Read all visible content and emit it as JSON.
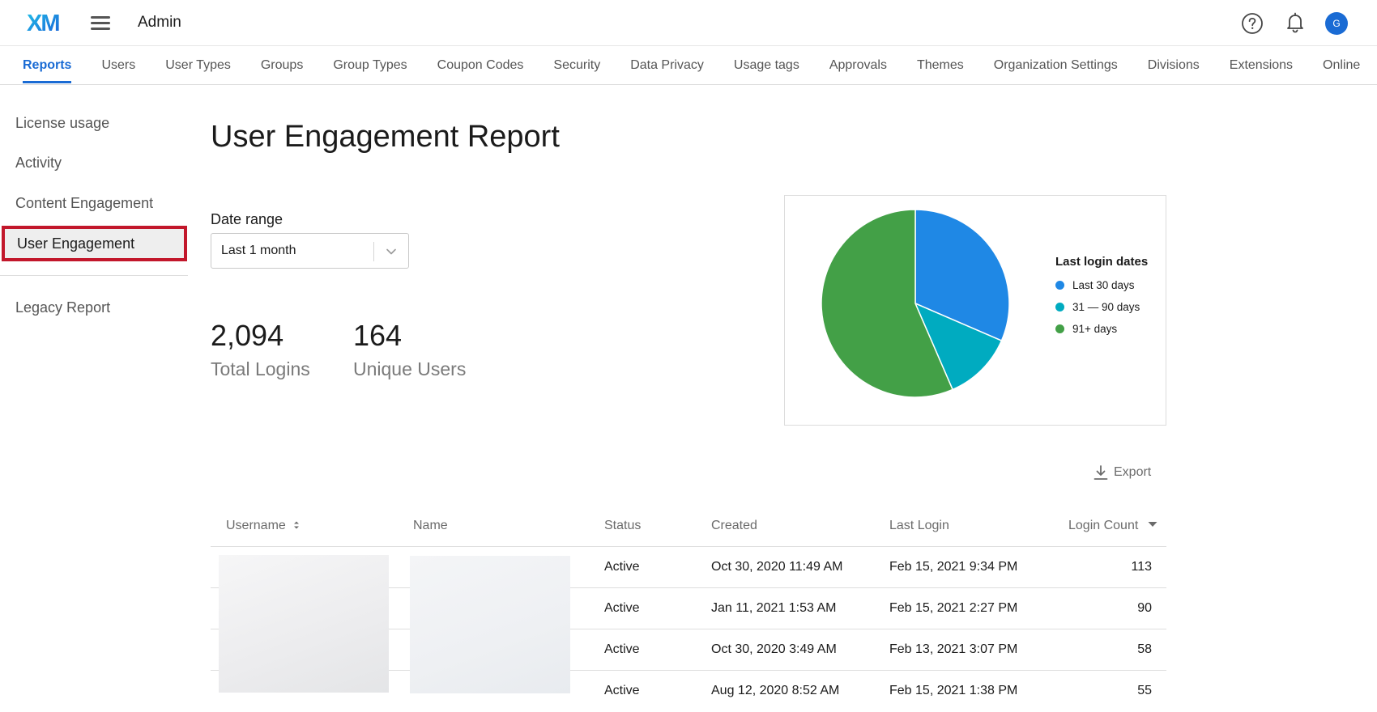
{
  "app": {
    "logo_text": "XM",
    "title": "Admin",
    "avatar_initial": "G"
  },
  "tabs": [
    {
      "label": "Reports",
      "active": true
    },
    {
      "label": "Users"
    },
    {
      "label": "User Types"
    },
    {
      "label": "Groups"
    },
    {
      "label": "Group Types"
    },
    {
      "label": "Coupon Codes"
    },
    {
      "label": "Security"
    },
    {
      "label": "Data Privacy"
    },
    {
      "label": "Usage tags"
    },
    {
      "label": "Approvals"
    },
    {
      "label": "Themes"
    },
    {
      "label": "Organization Settings"
    },
    {
      "label": "Divisions"
    },
    {
      "label": "Extensions"
    },
    {
      "label": "Online"
    }
  ],
  "sidebar": {
    "items": [
      {
        "label": "License usage"
      },
      {
        "label": "Activity"
      },
      {
        "label": "Content Engagement"
      },
      {
        "label": "User Engagement",
        "selected": true
      },
      {
        "label": "Legacy Report"
      }
    ]
  },
  "page": {
    "title": "User Engagement Report",
    "date_range_label": "Date range",
    "date_range_value": "Last 1 month"
  },
  "metrics": {
    "total_logins_value": "2,094",
    "total_logins_label": "Total Logins",
    "unique_users_value": "164",
    "unique_users_label": "Unique Users"
  },
  "chart_data": {
    "type": "pie",
    "title": "Last login dates",
    "categories": [
      "Last 30 days",
      "31 — 90 days",
      "91+ days"
    ],
    "values": [
      31.5,
      12,
      56.5
    ],
    "colors": [
      "#1f88e5",
      "#00abc0",
      "#43a047"
    ],
    "legend_position": "right"
  },
  "export_label": "Export",
  "table": {
    "columns": [
      "Username",
      "Name",
      "Status",
      "Created",
      "Last Login",
      "Login Count"
    ],
    "rows": [
      {
        "status": "Active",
        "created": "Oct 30, 2020 11:49 AM",
        "last_login": "Feb 15, 2021 9:34 PM",
        "count": "113"
      },
      {
        "status": "Active",
        "created": "Jan 11, 2021 1:53 AM",
        "last_login": "Feb 15, 2021 2:27 PM",
        "count": "90"
      },
      {
        "status": "Active",
        "created": "Oct 30, 2020 3:49 AM",
        "last_login": "Feb 13, 2021 3:07 PM",
        "count": "58"
      },
      {
        "status": "Active",
        "created": "Aug 12, 2020 8:52 AM",
        "last_login": "Feb 15, 2021 1:38 PM",
        "count": "55"
      }
    ]
  }
}
